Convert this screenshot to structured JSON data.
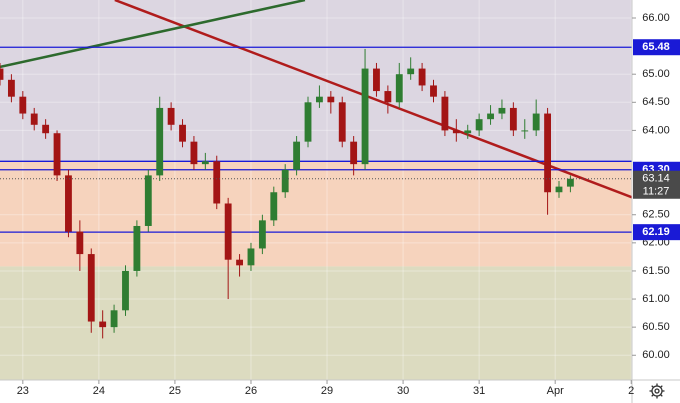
{
  "chart_data": {
    "type": "candlestick",
    "xlim": [
      -0.3,
      8.01
    ],
    "ylim": [
      59.56,
      66.32
    ],
    "xticks": [
      {
        "value": 0,
        "label": "23"
      },
      {
        "value": 1,
        "label": "24"
      },
      {
        "value": 2,
        "label": "25"
      },
      {
        "value": 3,
        "label": "26"
      },
      {
        "value": 4,
        "label": "29"
      },
      {
        "value": 5,
        "label": "30"
      },
      {
        "value": 6,
        "label": "31"
      },
      {
        "value": 7,
        "label": "Apr"
      },
      {
        "value": 8,
        "label": "2"
      }
    ],
    "yticks": [
      {
        "value": 66,
        "label": "66.00"
      },
      {
        "value": 65,
        "label": "65.00"
      },
      {
        "value": 64.5,
        "label": "64.50"
      },
      {
        "value": 64,
        "label": "64.00"
      },
      {
        "value": 62.5,
        "label": "62.50"
      },
      {
        "value": 62,
        "label": "62.00"
      },
      {
        "value": 61.5,
        "label": "61.50"
      },
      {
        "value": 61,
        "label": "61.00"
      },
      {
        "value": 60.5,
        "label": "60.50"
      },
      {
        "value": 60,
        "label": "60.00"
      }
    ],
    "grid": true,
    "up_color": "#2f7d32",
    "down_color": "#a31515",
    "x": [
      -0.3,
      -0.15,
      0,
      0.15,
      0.3,
      0.45,
      0.6,
      0.75,
      0.9,
      1.05,
      1.2,
      1.35,
      1.5,
      1.65,
      1.8,
      1.95,
      2.1,
      2.25,
      2.4,
      2.55,
      2.7,
      2.85,
      3,
      3.15,
      3.3,
      3.45,
      3.6,
      3.75,
      3.9,
      4.05,
      4.2,
      4.35,
      4.5,
      4.65,
      4.8,
      4.95,
      5.1,
      5.25,
      5.4,
      5.55,
      5.7,
      5.85,
      6,
      6.15,
      6.3,
      6.45,
      6.6,
      6.75,
      6.9,
      7.05,
      7.2
    ],
    "open": [
      65.1,
      64.9,
      64.6,
      64.3,
      64.1,
      63.95,
      63.2,
      62.2,
      61.8,
      60.6,
      60.5,
      60.8,
      61.5,
      62.3,
      63.2,
      64.4,
      64.1,
      63.8,
      63.4,
      63.45,
      62.7,
      61.7,
      61.6,
      61.9,
      62.4,
      62.9,
      63.3,
      63.8,
      64.5,
      64.6,
      64.5,
      63.8,
      63.4,
      65.1,
      64.7,
      64.5,
      65.0,
      65.1,
      64.8,
      64.6,
      64.0,
      63.95,
      64.0,
      64.2,
      64.3,
      64.4,
      64.0,
      64.0,
      64.3,
      62.9,
      63.0
    ],
    "high": [
      65.2,
      65.0,
      64.7,
      64.4,
      64.2,
      64.0,
      63.3,
      62.4,
      61.9,
      60.8,
      60.9,
      61.6,
      62.4,
      63.3,
      64.6,
      64.5,
      64.2,
      63.9,
      63.6,
      63.55,
      62.8,
      61.8,
      62.0,
      62.5,
      63.0,
      63.4,
      63.9,
      64.6,
      64.8,
      64.7,
      64.6,
      63.9,
      65.45,
      65.2,
      64.8,
      65.2,
      65.3,
      65.2,
      64.9,
      64.7,
      64.2,
      64.1,
      64.3,
      64.45,
      64.55,
      64.5,
      64.2,
      64.55,
      64.4,
      63.1,
      63.2
    ],
    "low": [
      64.8,
      64.5,
      64.2,
      64.0,
      63.85,
      63.1,
      62.1,
      61.5,
      60.4,
      60.3,
      60.4,
      60.7,
      61.4,
      62.2,
      63.1,
      64.0,
      63.7,
      63.3,
      63.3,
      62.6,
      61.0,
      61.4,
      61.5,
      61.8,
      62.3,
      62.8,
      63.2,
      63.7,
      64.4,
      64.3,
      63.7,
      63.2,
      63.3,
      64.6,
      64.3,
      64.4,
      64.9,
      64.7,
      64.5,
      63.9,
      63.8,
      63.85,
      63.9,
      64.1,
      64.2,
      63.9,
      63.85,
      63.9,
      62.5,
      62.8,
      62.9
    ],
    "close": [
      64.9,
      64.6,
      64.3,
      64.1,
      63.95,
      63.2,
      62.2,
      61.8,
      60.6,
      60.5,
      60.8,
      61.5,
      62.3,
      63.2,
      64.4,
      64.1,
      63.8,
      63.4,
      63.45,
      62.7,
      61.7,
      61.6,
      61.9,
      62.4,
      62.9,
      63.3,
      63.8,
      64.5,
      64.6,
      64.5,
      63.8,
      63.4,
      65.1,
      64.7,
      64.5,
      65.0,
      65.1,
      64.8,
      64.6,
      64.0,
      63.95,
      64.0,
      64.2,
      64.3,
      64.4,
      64.0,
      64.0,
      64.3,
      62.9,
      63.0,
      63.14
    ],
    "zones": [
      {
        "from": 63.45,
        "to": 66.32,
        "color": "#dcd6e1"
      },
      {
        "from": 61.58,
        "to": 63.45,
        "color": "#f6d3bd"
      },
      {
        "from": 59.56,
        "to": 61.58,
        "color": "#dcdbc0"
      }
    ],
    "level_color": "#1a1ad6",
    "levels": [
      65.48,
      {
        "value": 63.3,
        "label": "63.30"
      },
      62.19
    ],
    "unlabeled_levels": [
      63.45
    ],
    "trend_lines": [
      {
        "color": "#b01c1c",
        "x": [
          1.21,
          8.01
        ],
        "y": [
          66.32,
          62.81
        ]
      },
      {
        "color": "#2d6a2d",
        "x": [
          -0.3,
          3.71
        ],
        "y": [
          65.13,
          66.32
        ]
      }
    ],
    "last_price": 63.14,
    "countdown": "11:27"
  }
}
